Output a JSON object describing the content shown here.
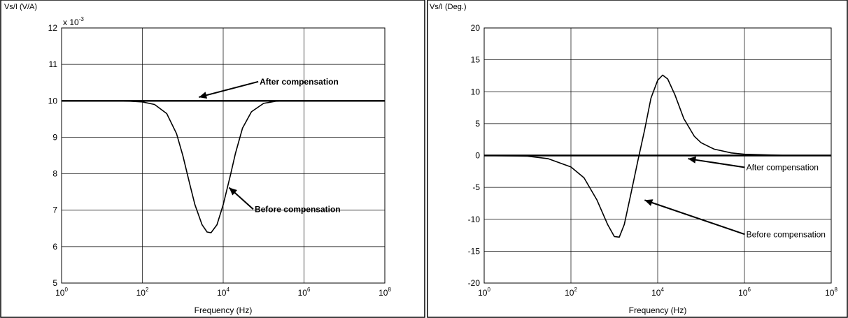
{
  "chart_data": [
    {
      "type": "line",
      "ylabel": "Vs/I (V/A)",
      "xlabel": "Frequency (Hz)",
      "y_exponent": {
        "base": "x 10",
        "exp": "-3"
      },
      "x_scale": "log",
      "xlim": [
        1,
        100000000
      ],
      "ylim": [
        5,
        12
      ],
      "grid": true,
      "x_ticks": [
        {
          "base": "10",
          "exp": "0",
          "value": 1
        },
        {
          "base": "10",
          "exp": "2",
          "value": 100
        },
        {
          "base": "10",
          "exp": "4",
          "value": 10000
        },
        {
          "base": "10",
          "exp": "6",
          "value": 1000000
        },
        {
          "base": "10",
          "exp": "8",
          "value": 100000000
        }
      ],
      "y_ticks": [
        "5",
        "6",
        "7",
        "8",
        "9",
        "10",
        "11",
        "12"
      ],
      "series": [
        {
          "x": [
            1,
            10,
            50,
            100,
            200,
            400,
            700,
            1000,
            1500,
            2000,
            3000,
            4000,
            5000,
            7000,
            10000,
            15000,
            20000,
            30000,
            50000,
            100000,
            200000,
            500000,
            1000000,
            10000000,
            100000000
          ],
          "y": [
            10.0,
            10.0,
            9.99,
            9.97,
            9.9,
            9.65,
            9.1,
            8.5,
            7.7,
            7.15,
            6.6,
            6.4,
            6.38,
            6.6,
            7.15,
            7.95,
            8.55,
            9.25,
            9.7,
            9.93,
            9.99,
            10.0,
            10.0,
            10.0,
            10.0
          ]
        },
        {
          "x": [
            1,
            100000000
          ],
          "y": [
            10.0,
            10.0
          ]
        }
      ],
      "annotations": [
        {
          "text": "After compensation",
          "x": 80000,
          "y": 10.45,
          "arrow_to": [
            2500,
            10.1
          ]
        },
        {
          "text": "Before compensation",
          "x": 60000,
          "y": 6.95,
          "arrow_to": [
            14000,
            7.62
          ]
        }
      ]
    },
    {
      "type": "line",
      "ylabel": "Vs/I (Deg.)",
      "xlabel": "Frequency (Hz)",
      "x_scale": "log",
      "xlim": [
        1,
        100000000
      ],
      "ylim": [
        -20,
        20
      ],
      "grid": true,
      "x_ticks": [
        {
          "base": "10",
          "exp": "0",
          "value": 1
        },
        {
          "base": "10",
          "exp": "2",
          "value": 100
        },
        {
          "base": "10",
          "exp": "4",
          "value": 10000
        },
        {
          "base": "10",
          "exp": "6",
          "value": 1000000
        },
        {
          "base": "10",
          "exp": "8",
          "value": 100000000
        }
      ],
      "y_ticks": [
        "-20",
        "-15",
        "-10",
        "-5",
        "0",
        "5",
        "10",
        "15",
        "20"
      ],
      "series": [
        {
          "x": [
            1,
            10,
            30,
            100,
            200,
            400,
            700,
            1000,
            1300,
            1700,
            2500,
            3500,
            5000,
            7000,
            10000,
            13000,
            17000,
            25000,
            40000,
            70000,
            100000,
            200000,
            500000,
            1000000,
            3000000,
            10000000,
            100000000
          ],
          "y": [
            0.0,
            -0.1,
            -0.5,
            -1.8,
            -3.5,
            -7.0,
            -10.8,
            -12.7,
            -12.8,
            -10.8,
            -5.5,
            -0.8,
            4.0,
            9.0,
            11.8,
            12.6,
            12.0,
            9.5,
            5.8,
            3.0,
            2.0,
            1.0,
            0.4,
            0.2,
            0.1,
            0.0,
            0.0
          ]
        },
        {
          "x": [
            1,
            100000000
          ],
          "y": [
            0.0,
            0.0
          ]
        }
      ],
      "annotations": [
        {
          "text": "After compensation",
          "x": 1100000,
          "y": -2.3,
          "arrow_to": [
            50000,
            -0.5
          ]
        },
        {
          "text": "Before compensation",
          "x": 1100000,
          "y": -12.8,
          "arrow_to": [
            5000,
            -7.0
          ]
        }
      ]
    }
  ]
}
